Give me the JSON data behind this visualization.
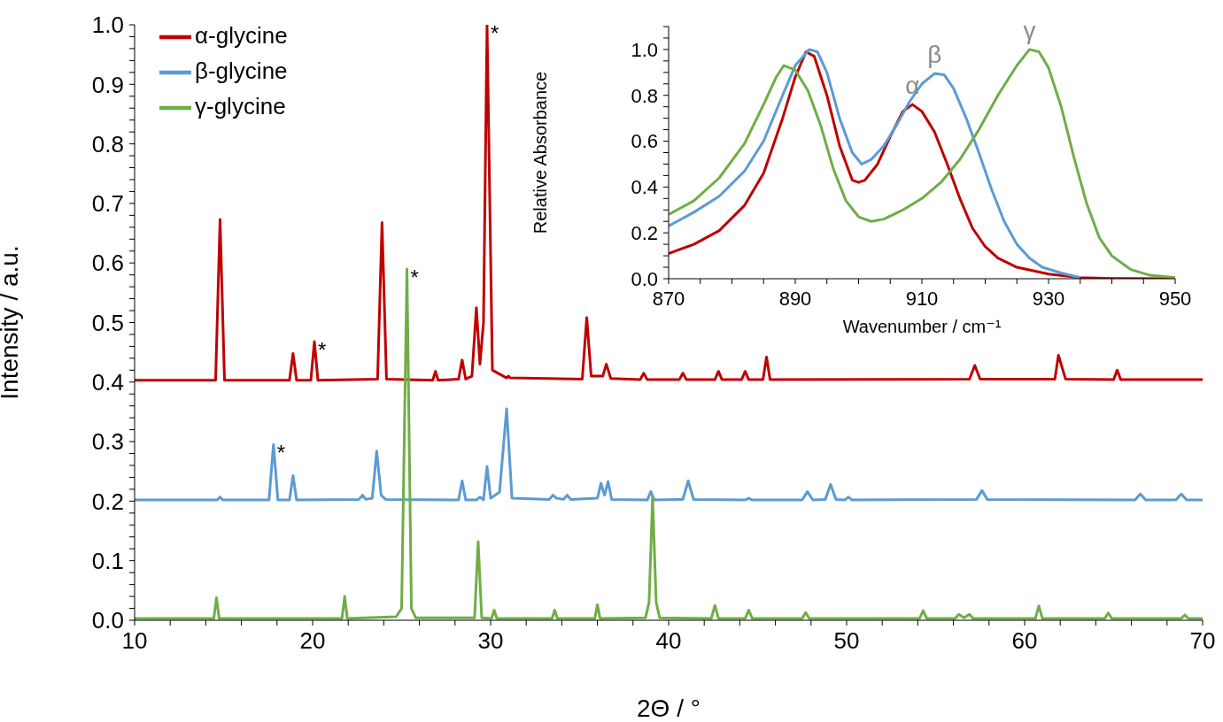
{
  "chart_data": [
    {
      "type": "line",
      "xlabel": "2Θ / °",
      "ylabel": "Intensity / a.u.",
      "legend": "top left",
      "xlim": [
        10,
        70
      ],
      "ylim": [
        0,
        1
      ],
      "xticks": [
        10,
        {
          "value": 12,
          "label": null
        },
        {
          "value": 14,
          "label": null
        },
        {
          "value": 16,
          "label": null
        },
        {
          "value": 18,
          "label": null
        },
        20,
        {
          "value": 22,
          "label": null
        },
        {
          "value": 24,
          "label": null
        },
        {
          "value": 26,
          "label": null
        },
        {
          "value": 28,
          "label": null
        },
        30,
        {
          "value": 32,
          "label": null
        },
        {
          "value": 34,
          "label": null
        },
        {
          "value": 36,
          "label": null
        },
        {
          "value": 38,
          "label": null
        },
        40,
        {
          "value": 42,
          "label": null
        },
        {
          "value": 44,
          "label": null
        },
        {
          "value": 46,
          "label": null
        },
        {
          "value": 48,
          "label": null
        },
        50,
        {
          "value": 52,
          "label": null
        },
        {
          "value": 54,
          "label": null
        },
        {
          "value": 56,
          "label": null
        },
        {
          "value": 58,
          "label": null
        },
        60,
        {
          "value": 62,
          "label": null
        },
        {
          "value": 64,
          "label": null
        },
        {
          "value": 66,
          "label": null
        },
        {
          "value": 68,
          "label": null
        },
        70
      ],
      "yticks": [
        {
          "value": 0,
          "label": "0.0"
        },
        {
          "value": 0.02,
          "label": null
        },
        {
          "value": 0.04,
          "label": null
        },
        {
          "value": 0.06,
          "label": null
        },
        {
          "value": 0.08,
          "label": null
        },
        0.1,
        {
          "value": 0.12,
          "label": null
        },
        {
          "value": 0.14,
          "label": null
        },
        {
          "value": 0.16,
          "label": null
        },
        {
          "value": 0.18,
          "label": null
        },
        0.2,
        {
          "value": 0.22,
          "label": null
        },
        {
          "value": 0.24,
          "label": null
        },
        {
          "value": 0.26,
          "label": null
        },
        {
          "value": 0.28,
          "label": null
        },
        0.3,
        {
          "value": 0.32,
          "label": null
        },
        {
          "value": 0.34,
          "label": null
        },
        {
          "value": 0.36,
          "label": null
        },
        {
          "value": 0.38,
          "label": null
        },
        0.4,
        {
          "value": 0.42,
          "label": null
        },
        {
          "value": 0.44,
          "label": null
        },
        {
          "value": 0.46,
          "label": null
        },
        {
          "value": 0.48,
          "label": null
        },
        0.5,
        {
          "value": 0.52,
          "label": null
        },
        {
          "value": 0.54,
          "label": null
        },
        {
          "value": 0.56,
          "label": null
        },
        {
          "value": 0.58,
          "label": null
        },
        0.6,
        {
          "value": 0.62,
          "label": null
        },
        {
          "value": 0.64,
          "label": null
        },
        {
          "value": 0.66,
          "label": null
        },
        {
          "value": 0.68,
          "label": null
        },
        0.7,
        {
          "value": 0.72,
          "label": null
        },
        {
          "value": 0.74,
          "label": null
        },
        {
          "value": 0.76,
          "label": null
        },
        {
          "value": 0.78,
          "label": null
        },
        0.8,
        {
          "value": 0.82,
          "label": null
        },
        {
          "value": 0.84,
          "label": null
        },
        {
          "value": 0.86,
          "label": null
        },
        {
          "value": 0.88,
          "label": null
        },
        0.9,
        {
          "value": 0.92,
          "label": null
        },
        {
          "value": 0.94,
          "label": null
        },
        {
          "value": 0.96,
          "label": null
        },
        {
          "value": 0.98,
          "label": null
        },
        {
          "value": 1,
          "label": "1.0"
        }
      ],
      "series": [
        {
          "name": "α-glycine",
          "color": "#c00000",
          "x": [
            10,
            14.55,
            14.8,
            15.05,
            18.7,
            18.9,
            19.1,
            19.9,
            20.1,
            20.3,
            23.65,
            23.9,
            24.15,
            26.75,
            26.9,
            27.05,
            28.2,
            28.4,
            28.6,
            28.95,
            29.2,
            29.4,
            29.6,
            29.8,
            30.1,
            30.9,
            31.0,
            31.1,
            35.15,
            35.4,
            35.65,
            36.3,
            36.5,
            36.75,
            38.4,
            38.6,
            38.8,
            40.6,
            40.8,
            41.0,
            42.6,
            42.8,
            43.0,
            44.1,
            44.3,
            44.5,
            45.3,
            45.5,
            45.7,
            56.9,
            57.2,
            57.5,
            61.7,
            61.9,
            62.1,
            62.3,
            65.0,
            65.2,
            65.4,
            70
          ],
          "values": [
            0.403,
            0.403,
            0.673,
            0.403,
            0.403,
            0.448,
            0.403,
            0.403,
            0.468,
            0.403,
            0.405,
            0.668,
            0.405,
            0.403,
            0.418,
            0.403,
            0.405,
            0.437,
            0.405,
            0.41,
            0.525,
            0.43,
            0.5,
            1.0,
            0.42,
            0.407,
            0.41,
            0.407,
            0.405,
            0.508,
            0.41,
            0.41,
            0.43,
            0.406,
            0.404,
            0.415,
            0.404,
            0.404,
            0.415,
            0.404,
            0.404,
            0.418,
            0.404,
            0.404,
            0.418,
            0.404,
            0.404,
            0.442,
            0.404,
            0.405,
            0.428,
            0.405,
            0.405,
            0.445,
            0.425,
            0.405,
            0.404,
            0.42,
            0.404,
            0.404
          ]
        },
        {
          "name": "β-glycine",
          "color": "#5b9bd5",
          "x": [
            10,
            14.65,
            14.8,
            14.95,
            17.55,
            17.8,
            18.05,
            18.7,
            18.9,
            19.1,
            22.6,
            22.8,
            23.0,
            23.35,
            23.6,
            23.85,
            24.1,
            28.2,
            28.4,
            28.6,
            29.2,
            29.4,
            29.6,
            29.8,
            30.0,
            30.5,
            30.9,
            31.2,
            33.3,
            33.5,
            33.7,
            34.1,
            34.3,
            34.5,
            36.0,
            36.2,
            36.4,
            36.6,
            36.8,
            38.8,
            39.0,
            39.2,
            40.8,
            41.1,
            41.4,
            44.3,
            44.5,
            44.7,
            47.5,
            47.8,
            48.1,
            48.8,
            49.1,
            49.4,
            49.9,
            50.1,
            50.3,
            57.3,
            57.6,
            57.9,
            66.2,
            66.5,
            66.8,
            68.5,
            68.8,
            69.1,
            70
          ],
          "values": [
            0.202,
            0.202,
            0.207,
            0.202,
            0.202,
            0.295,
            0.202,
            0.202,
            0.243,
            0.202,
            0.203,
            0.21,
            0.203,
            0.205,
            0.284,
            0.21,
            0.203,
            0.202,
            0.234,
            0.202,
            0.202,
            0.207,
            0.202,
            0.258,
            0.205,
            0.215,
            0.355,
            0.205,
            0.203,
            0.21,
            0.205,
            0.203,
            0.21,
            0.203,
            0.205,
            0.23,
            0.21,
            0.233,
            0.203,
            0.202,
            0.216,
            0.202,
            0.203,
            0.234,
            0.203,
            0.202,
            0.205,
            0.202,
            0.202,
            0.216,
            0.202,
            0.203,
            0.228,
            0.203,
            0.202,
            0.207,
            0.202,
            0.203,
            0.218,
            0.203,
            0.202,
            0.212,
            0.202,
            0.202,
            0.212,
            0.202,
            0.202
          ]
        },
        {
          "name": "γ-glycine",
          "color": "#70ad47",
          "x": [
            10,
            14.45,
            14.6,
            14.75,
            21.65,
            21.8,
            21.95,
            24.7,
            25.0,
            25.3,
            25.55,
            25.8,
            29.1,
            29.3,
            29.5,
            30.05,
            30.2,
            30.35,
            33.45,
            33.6,
            33.75,
            35.85,
            36.0,
            36.15,
            38.7,
            38.9,
            39.1,
            39.3,
            39.5,
            42.4,
            42.6,
            42.8,
            44.3,
            44.5,
            44.7,
            47.5,
            47.7,
            47.9,
            54.1,
            54.3,
            54.5,
            56.1,
            56.3,
            56.6,
            56.9,
            57.1,
            60.6,
            60.8,
            61.0,
            64.5,
            64.7,
            64.9,
            68.8,
            69.0,
            69.2,
            70
          ],
          "values": [
            0.003,
            0.003,
            0.038,
            0.003,
            0.003,
            0.04,
            0.003,
            0.006,
            0.02,
            0.59,
            0.02,
            0.004,
            0.004,
            0.132,
            0.004,
            0.003,
            0.017,
            0.003,
            0.003,
            0.017,
            0.003,
            0.003,
            0.026,
            0.003,
            0.004,
            0.03,
            0.207,
            0.03,
            0.004,
            0.003,
            0.025,
            0.003,
            0.003,
            0.017,
            0.003,
            0.003,
            0.013,
            0.003,
            0.003,
            0.016,
            0.003,
            0.003,
            0.01,
            0.004,
            0.01,
            0.003,
            0.003,
            0.024,
            0.003,
            0.003,
            0.012,
            0.003,
            0.003,
            0.009,
            0.003,
            0.003
          ]
        }
      ],
      "annotations": [
        {
          "text": "*",
          "x": 20.1,
          "y": 0.468
        },
        {
          "text": "*",
          "x": 29.8,
          "y": 1.0
        },
        {
          "text": "*",
          "x": 17.8,
          "y": 0.295
        },
        {
          "text": "*",
          "x": 25.3,
          "y": 0.59
        }
      ]
    },
    {
      "type": "line",
      "xlabel": "Wavenumber / cm⁻¹",
      "ylabel": "Relative Absorbance",
      "xlim": [
        870,
        950
      ],
      "ylim": [
        0,
        1.1
      ],
      "xticks": [
        870,
        {
          "value": 875,
          "label": null
        },
        {
          "value": 880,
          "label": null
        },
        {
          "value": 885,
          "label": null
        },
        890,
        {
          "value": 895,
          "label": null
        },
        {
          "value": 900,
          "label": null
        },
        {
          "value": 905,
          "label": null
        },
        910,
        {
          "value": 915,
          "label": null
        },
        {
          "value": 920,
          "label": null
        },
        {
          "value": 925,
          "label": null
        },
        930,
        {
          "value": 935,
          "label": null
        },
        {
          "value": 940,
          "label": null
        },
        {
          "value": 945,
          "label": null
        },
        950
      ],
      "yticks": [
        {
          "value": 0,
          "label": "0.0"
        },
        {
          "value": 0.05,
          "label": null
        },
        {
          "value": 0.1,
          "label": null
        },
        {
          "value": 0.15,
          "label": null
        },
        0.2,
        {
          "value": 0.25,
          "label": null
        },
        {
          "value": 0.3,
          "label": null
        },
        {
          "value": 0.35,
          "label": null
        },
        0.4,
        {
          "value": 0.45,
          "label": null
        },
        {
          "value": 0.5,
          "label": null
        },
        {
          "value": 0.55,
          "label": null
        },
        0.6,
        {
          "value": 0.65,
          "label": null
        },
        {
          "value": 0.7,
          "label": null
        },
        {
          "value": 0.75,
          "label": null
        },
        0.8,
        {
          "value": 0.85,
          "label": null
        },
        {
          "value": 0.9,
          "label": null
        },
        {
          "value": 0.95,
          "label": null
        },
        {
          "value": 1,
          "label": "1.0"
        },
        {
          "value": 1.05,
          "label": null
        },
        {
          "value": 1.1,
          "label": null
        }
      ],
      "series": [
        {
          "color": "#c00000",
          "x": [
            870,
            874,
            878,
            882,
            885,
            888,
            890,
            891.7,
            893,
            895,
            897,
            899,
            900,
            901,
            903,
            905,
            907,
            908.5,
            910,
            912,
            914,
            916,
            918,
            920,
            922,
            925,
            930,
            935,
            940,
            950
          ],
          "values": [
            0.11,
            0.15,
            0.21,
            0.32,
            0.46,
            0.7,
            0.88,
            0.99,
            0.97,
            0.8,
            0.58,
            0.43,
            0.42,
            0.43,
            0.5,
            0.62,
            0.73,
            0.76,
            0.73,
            0.64,
            0.5,
            0.35,
            0.22,
            0.14,
            0.09,
            0.05,
            0.02,
            0.005,
            0.001,
            0.0
          ]
        },
        {
          "color": "#5b9bd5",
          "x": [
            870,
            874,
            878,
            882,
            885,
            888,
            890,
            892.2,
            893.5,
            895,
            897,
            899,
            900.5,
            902,
            904,
            906,
            908,
            910,
            912,
            913.5,
            915,
            917,
            919,
            921,
            923,
            925,
            927,
            929,
            932,
            935
          ],
          "values": [
            0.23,
            0.29,
            0.36,
            0.47,
            0.6,
            0.8,
            0.93,
            1.0,
            0.99,
            0.9,
            0.7,
            0.55,
            0.5,
            0.52,
            0.58,
            0.67,
            0.77,
            0.85,
            0.895,
            0.89,
            0.83,
            0.7,
            0.55,
            0.39,
            0.25,
            0.15,
            0.09,
            0.05,
            0.025,
            0.005
          ]
        },
        {
          "color": "#70ad47",
          "x": [
            870,
            874,
            878,
            882,
            885,
            887,
            888.2,
            890,
            892,
            894,
            896,
            898,
            900,
            902,
            904,
            907,
            910,
            913,
            916,
            919,
            922,
            925,
            927,
            928.5,
            930,
            932,
            934,
            936,
            938,
            940,
            943,
            946,
            950
          ],
          "values": [
            0.28,
            0.34,
            0.44,
            0.59,
            0.76,
            0.88,
            0.93,
            0.91,
            0.82,
            0.67,
            0.48,
            0.34,
            0.27,
            0.25,
            0.26,
            0.3,
            0.35,
            0.42,
            0.52,
            0.65,
            0.8,
            0.93,
            1.0,
            0.99,
            0.92,
            0.75,
            0.53,
            0.33,
            0.18,
            0.1,
            0.04,
            0.015,
            0.005
          ]
        }
      ],
      "annotations": [
        {
          "text": "α",
          "x": 908.5,
          "y": 0.76
        },
        {
          "text": "β",
          "x": 912,
          "y": 0.895
        },
        {
          "text": "γ",
          "x": 927,
          "y": 1.0
        }
      ]
    }
  ]
}
